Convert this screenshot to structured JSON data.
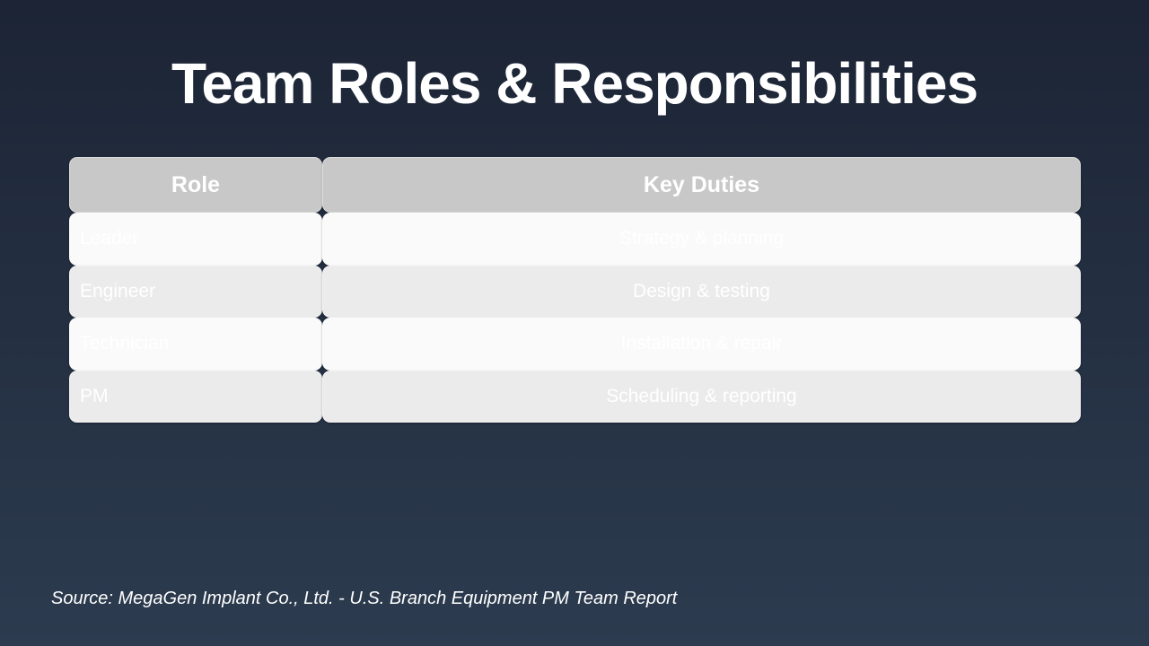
{
  "slide": {
    "title": "Team Roles & Responsibilities",
    "source": "Source: MegaGen Implant Co., Ltd. - U.S. Branch Equipment PM Team Report"
  },
  "table": {
    "headers": [
      "Role",
      "Key Duties"
    ],
    "rows": [
      {
        "role": "Leader",
        "duties": "Strategy & planning"
      },
      {
        "role": "Engineer",
        "duties": "Design & testing"
      },
      {
        "role": "Technician",
        "duties": "Installation & repair"
      },
      {
        "role": "PM",
        "duties": "Scheduling & reporting"
      }
    ]
  },
  "colors": {
    "background_top": "#1c2435",
    "background_bottom": "#2c3b4f",
    "header_cell": "#c8c8c8",
    "row_odd": "#fafafa",
    "row_even": "#ebebeb",
    "text": "#ffffff"
  }
}
